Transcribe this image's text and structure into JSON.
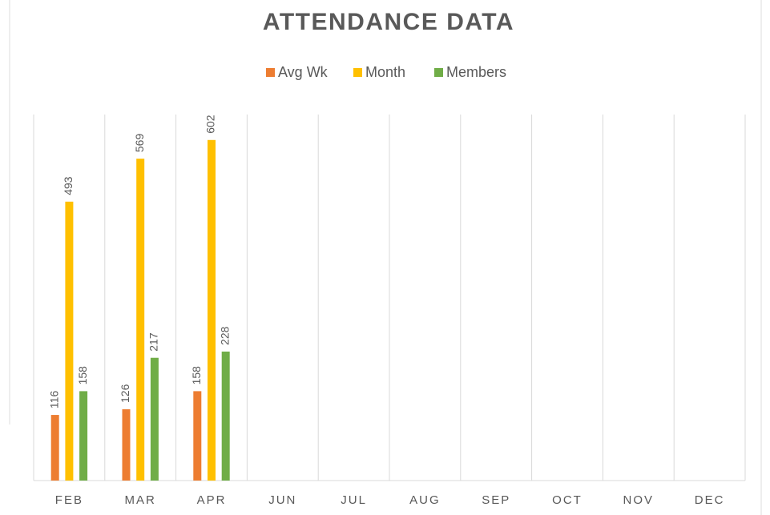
{
  "chart_data": {
    "type": "bar",
    "title": "ATTENDANCE DATA",
    "categories": [
      "FEB",
      "MAR",
      "APR",
      "JUN",
      "JUL",
      "AUG",
      "SEP",
      "OCT",
      "NOV",
      "DEC"
    ],
    "series": [
      {
        "name": "Avg Wk",
        "color": "#ed7d31",
        "values": [
          116,
          126,
          158,
          null,
          null,
          null,
          null,
          null,
          null,
          null
        ]
      },
      {
        "name": "Month",
        "color": "#ffc000",
        "values": [
          493,
          569,
          602,
          null,
          null,
          null,
          null,
          null,
          null,
          null
        ]
      },
      {
        "name": "Members",
        "color": "#70ad47",
        "values": [
          158,
          217,
          228,
          null,
          null,
          null,
          null,
          null,
          null,
          null
        ]
      }
    ],
    "ylim": [
      0,
      647
    ],
    "legend": "top",
    "data_labels": true
  }
}
